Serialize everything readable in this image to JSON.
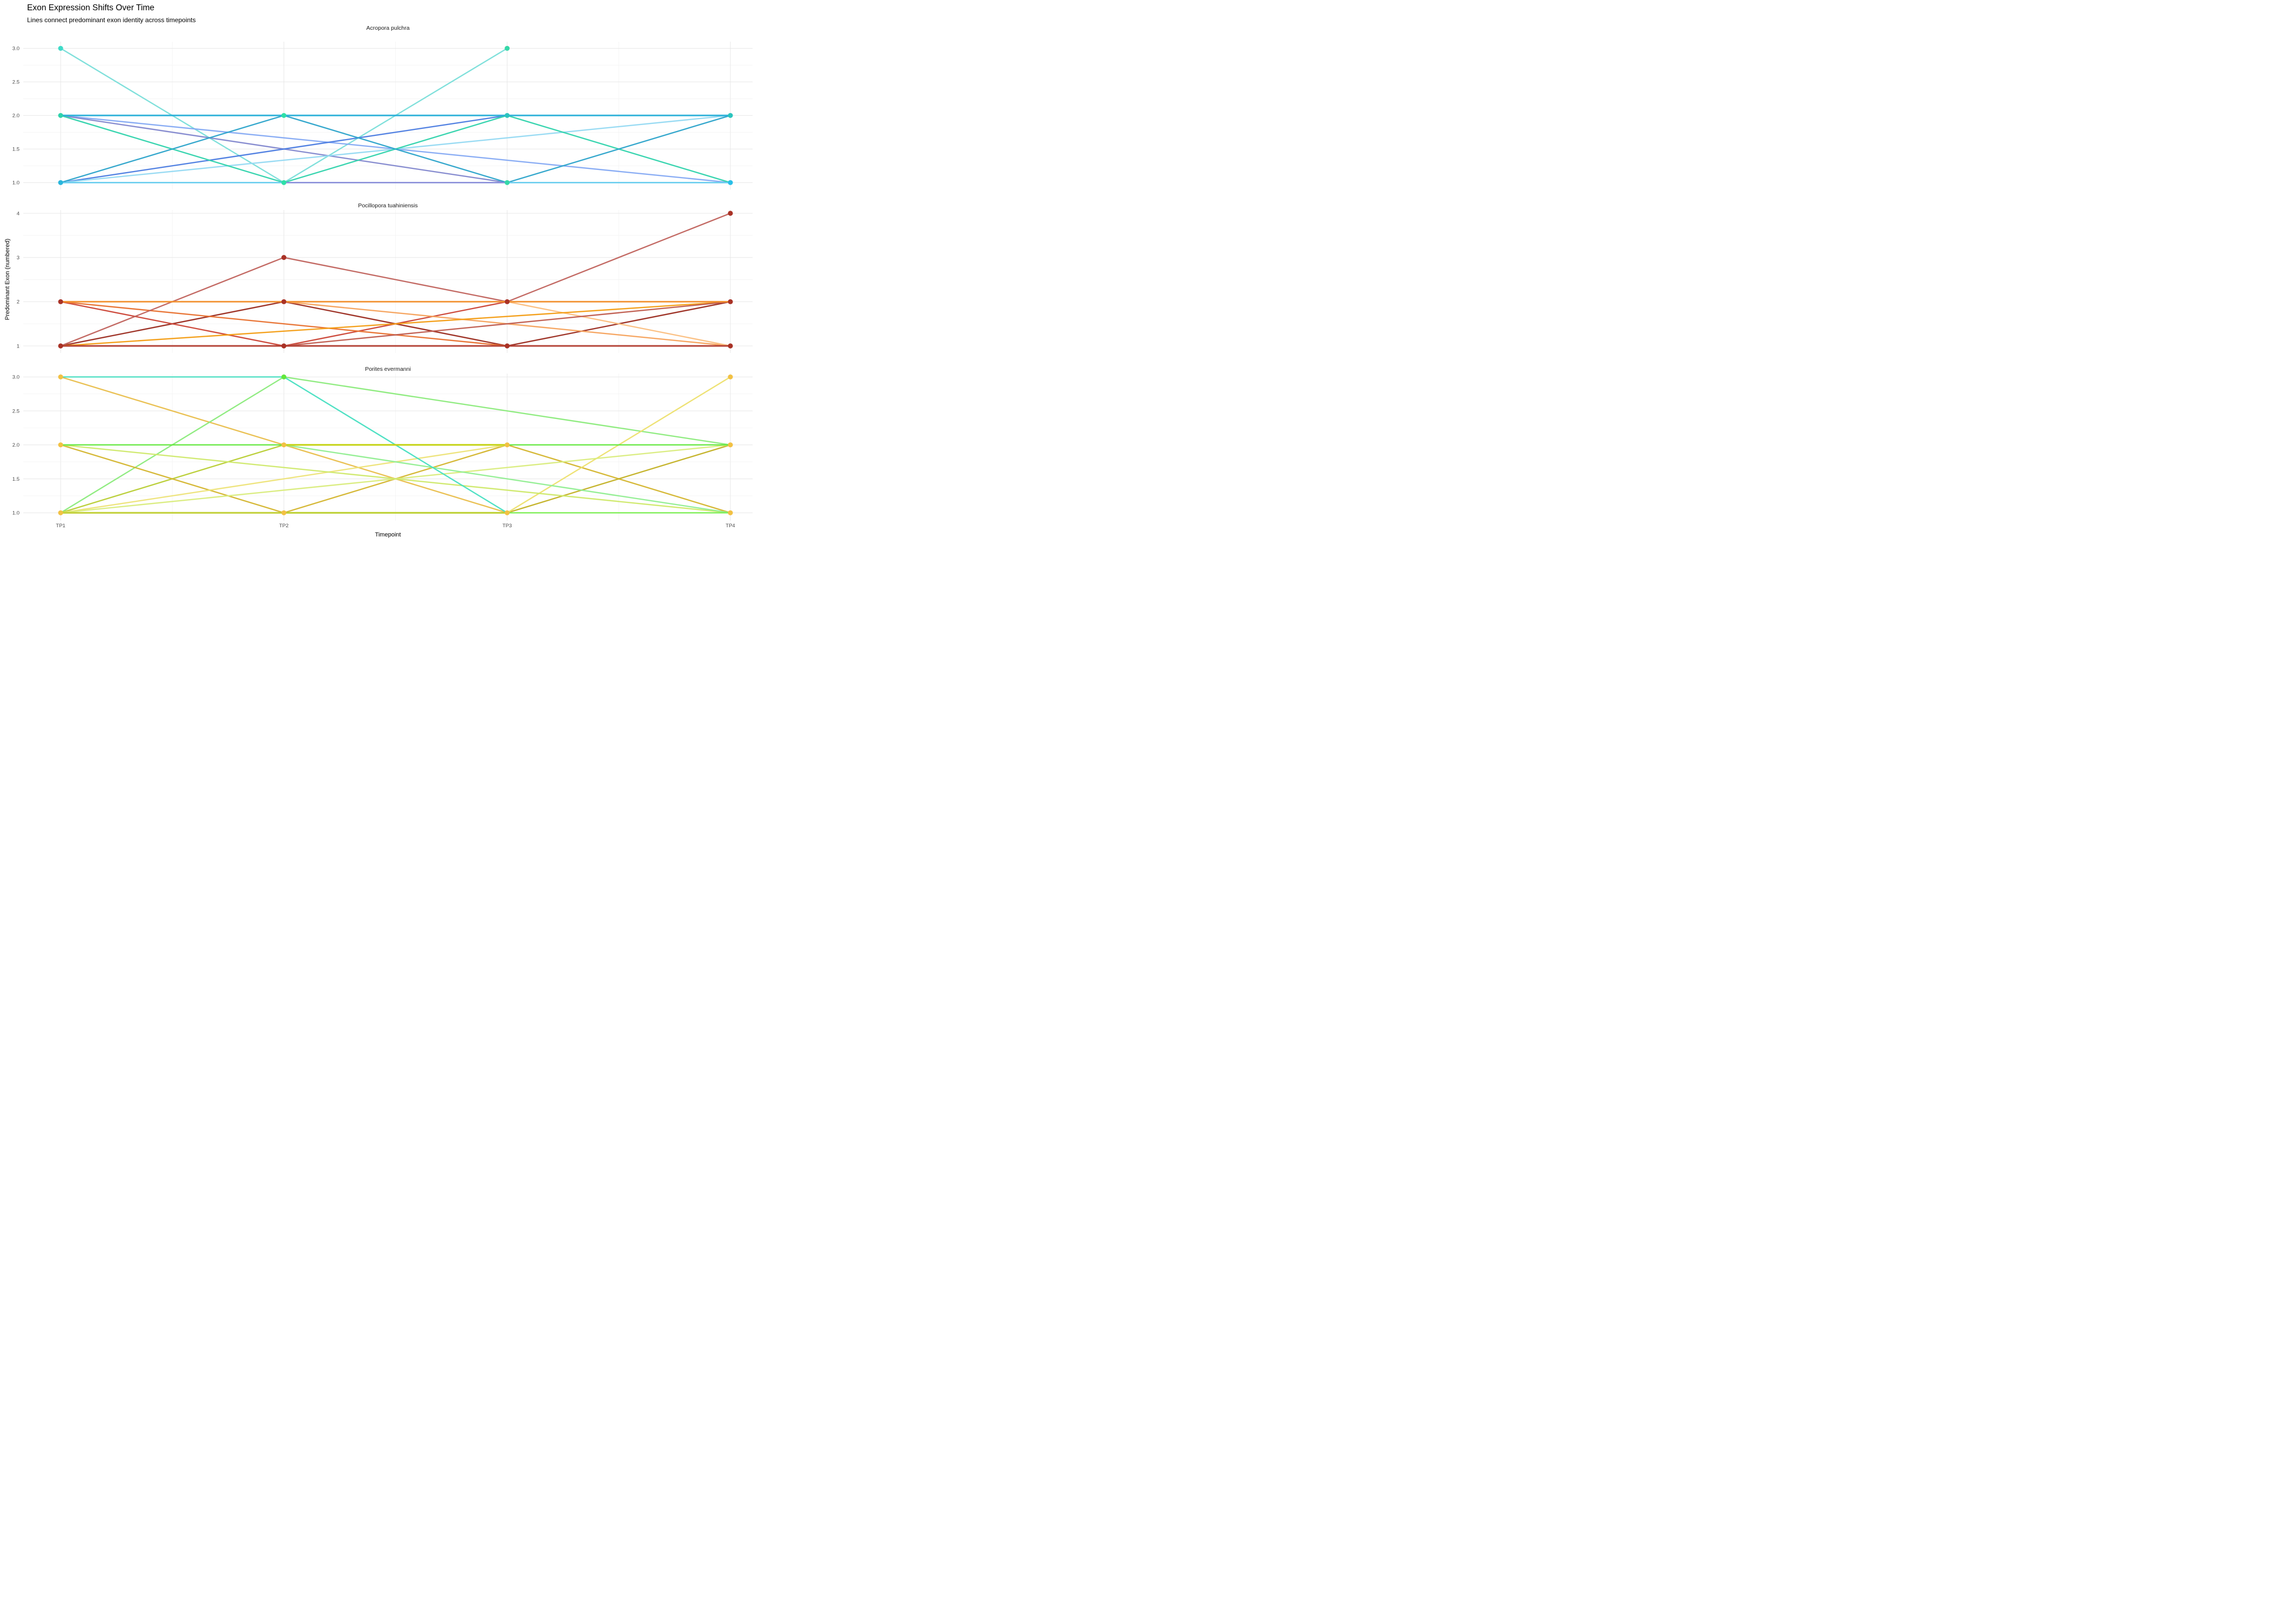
{
  "title": "Exon Expression Shifts Over Time",
  "subtitle": "Lines connect predominant exon identity across timepoints",
  "axis": {
    "x_label": "Timepoint",
    "y_label": "Predominant Exon (numbered)",
    "x_tick_labels": [
      "TP1",
      "TP2",
      "TP3",
      "TP4"
    ]
  },
  "style": {
    "grid_major_color": "#E9E9E9",
    "grid_minor_color": "#F4F4F4",
    "tick_label_color": "#4D4D4D",
    "background": "#FFFFFF"
  },
  "chart_data": [
    {
      "type": "line",
      "species": "Acropora pulchra",
      "x": [
        "TP1",
        "TP2",
        "TP3",
        "TP4"
      ],
      "ylim": [
        1,
        3
      ],
      "yticks": [
        1,
        1.5,
        2,
        2.5,
        3
      ],
      "ytick_labels": [
        "1.0",
        "1.5",
        "2.0",
        "2.5",
        "3.0"
      ],
      "minor_yticks": [
        1.25,
        1.75,
        2.25,
        2.75
      ],
      "grid": true,
      "legend": "none",
      "series": [
        {
          "id": "aqua",
          "color": "#79DED9",
          "values": [
            3,
            1,
            3,
            null
          ]
        },
        {
          "id": "cornflower",
          "color": "#84A9F3",
          "values": [
            2,
            null,
            null,
            1
          ]
        },
        {
          "id": "slate",
          "color": "#8287CE",
          "values": [
            2,
            null,
            1,
            null
          ]
        },
        {
          "id": "royal",
          "color": "#4A7BE0",
          "values": [
            1,
            null,
            2,
            null
          ]
        },
        {
          "id": "palesky",
          "color": "#93D9F2",
          "values": [
            1,
            null,
            null,
            2
          ]
        },
        {
          "id": "mint",
          "color": "#2FD3AC",
          "values": [
            2,
            1,
            2,
            1
          ]
        },
        {
          "id": "teal",
          "color": "#2BA3CA",
          "values": [
            1,
            2,
            1,
            2
          ]
        },
        {
          "id": "sky",
          "color": "#63CBEE",
          "values": [
            1,
            1,
            1,
            1
          ],
          "width": 2.7
        },
        {
          "id": "violet",
          "color": "#8F86D6",
          "values": [
            null,
            1,
            1,
            null
          ]
        },
        {
          "id": "boldcyan",
          "color": "#27AFD8",
          "values": [
            2,
            2,
            2,
            2
          ],
          "width": 3
        }
      ],
      "points": [
        {
          "tp": 1,
          "value": 3,
          "color": "#3EDBC8"
        },
        {
          "tp": 1,
          "value": 2,
          "color": "#2FD3AC"
        },
        {
          "tp": 1,
          "value": 1,
          "color": "#29B6DC"
        },
        {
          "tp": 2,
          "value": 2,
          "color": "#2EE0A8"
        },
        {
          "tp": 2,
          "value": 1,
          "color": "#2EE0A8"
        },
        {
          "tp": 3,
          "value": 3,
          "color": "#35D8A8"
        },
        {
          "tp": 3,
          "value": 2,
          "color": "#2BC4BE"
        },
        {
          "tp": 3,
          "value": 1,
          "color": "#35D8A8"
        },
        {
          "tp": 4,
          "value": 2,
          "color": "#2BC4BE"
        },
        {
          "tp": 4,
          "value": 1,
          "color": "#29BFE8"
        }
      ]
    },
    {
      "type": "line",
      "species": "Pocillopora tuahiniensis",
      "x": [
        "TP1",
        "TP2",
        "TP3",
        "TP4"
      ],
      "ylim": [
        1,
        4
      ],
      "yticks": [
        1,
        2,
        3,
        4
      ],
      "ytick_labels": [
        "1",
        "2",
        "3",
        "4"
      ],
      "minor_yticks": [
        1.5,
        2.5,
        3.5
      ],
      "grid": true,
      "legend": "none",
      "series": [
        {
          "id": "maroon",
          "color": "#9A2A1E",
          "values": [
            1,
            2,
            1,
            2
          ]
        },
        {
          "id": "red",
          "color": "#CB4335",
          "values": [
            2,
            1,
            2,
            null
          ]
        },
        {
          "id": "darkorange",
          "color": "#E8702E",
          "values": [
            2,
            null,
            1,
            null
          ]
        },
        {
          "id": "paleorange",
          "color": "#F5A15A",
          "values": [
            null,
            2,
            null,
            1
          ]
        },
        {
          "id": "peach",
          "color": "#FBBE7E",
          "values": [
            null,
            null,
            2,
            1
          ]
        },
        {
          "id": "tangerine",
          "color": "#F39C12",
          "values": [
            1,
            null,
            null,
            2
          ]
        },
        {
          "id": "brick",
          "color": "#BF5B4D",
          "values": [
            null,
            1,
            null,
            2
          ]
        },
        {
          "id": "rose",
          "color": "#C0625C",
          "values": [
            1,
            3,
            2,
            4
          ]
        },
        {
          "id": "orange",
          "color": "#F28E2B",
          "values": [
            2,
            2,
            2,
            2
          ],
          "width": 2.9
        },
        {
          "id": "brickbold",
          "color": "#B03A2E",
          "values": [
            1,
            1,
            1,
            1
          ],
          "width": 3.1
        }
      ],
      "points": [
        {
          "tp": 1,
          "value": 2,
          "color": "#A93226"
        },
        {
          "tp": 1,
          "value": 1,
          "color": "#A93226"
        },
        {
          "tp": 2,
          "value": 3,
          "color": "#A93226"
        },
        {
          "tp": 2,
          "value": 2,
          "color": "#A93226"
        },
        {
          "tp": 2,
          "value": 1,
          "color": "#A93226"
        },
        {
          "tp": 3,
          "value": 2,
          "color": "#A93226"
        },
        {
          "tp": 3,
          "value": 1,
          "color": "#A93226"
        },
        {
          "tp": 4,
          "value": 4,
          "color": "#A93226"
        },
        {
          "tp": 4,
          "value": 2,
          "color": "#A93226"
        },
        {
          "tp": 4,
          "value": 1,
          "color": "#A93226"
        }
      ]
    },
    {
      "type": "line",
      "species": "Porites evermanni",
      "x": [
        "TP1",
        "TP2",
        "TP3",
        "TP4"
      ],
      "ylim": [
        1,
        3
      ],
      "yticks": [
        1,
        1.5,
        2,
        2.5,
        3
      ],
      "ytick_labels": [
        "1.0",
        "1.5",
        "2.0",
        "2.5",
        "3.0"
      ],
      "minor_yticks": [
        1.25,
        1.75,
        2.25,
        2.75
      ],
      "grid": true,
      "legend": "none",
      "series": [
        {
          "id": "golden",
          "color": "#E9BE4B",
          "values": [
            3,
            2,
            1,
            null
          ]
        },
        {
          "id": "lightgreen",
          "color": "#8BEB7B",
          "values": [
            1,
            3,
            null,
            2
          ]
        },
        {
          "id": "ygasc",
          "color": "#B8CE33",
          "values": [
            1,
            2,
            null,
            null
          ]
        },
        {
          "id": "mustard",
          "color": "#D4B52E",
          "values": [
            2,
            1,
            2,
            1
          ]
        },
        {
          "id": "oliveasc",
          "color": "#C3B124",
          "values": [
            null,
            null,
            1,
            2
          ]
        },
        {
          "id": "paleyellow-a",
          "color": "#EDE377",
          "values": [
            1,
            null,
            2,
            null
          ]
        },
        {
          "id": "paleyellow-b",
          "color": "#EDE06E",
          "values": [
            null,
            null,
            1,
            3
          ]
        },
        {
          "id": "palelime",
          "color": "#D9EC7C",
          "values": [
            1,
            null,
            null,
            2
          ]
        },
        {
          "id": "paleyg",
          "color": "#CFE96A",
          "values": [
            2,
            null,
            null,
            1
          ]
        },
        {
          "id": "lightgreen2",
          "color": "#90EE90",
          "values": [
            null,
            2,
            null,
            1
          ]
        },
        {
          "id": "turquoise",
          "color": "#47DFC1",
          "values": [
            3,
            3,
            1,
            null
          ]
        },
        {
          "id": "greenflat1",
          "color": "#76EE4C",
          "values": [
            null,
            1,
            1,
            1
          ]
        },
        {
          "id": "oliveflat1",
          "color": "#BFCE2F",
          "values": [
            1,
            1,
            1,
            null
          ],
          "width": 3.1
        },
        {
          "id": "greenflat2",
          "color": "#62E83C",
          "values": [
            2,
            2,
            2,
            2
          ]
        },
        {
          "id": "oliveflat2",
          "color": "#C9D214",
          "values": [
            null,
            2,
            2,
            null
          ],
          "width": 3.1
        }
      ],
      "points": [
        {
          "tp": 1,
          "value": 3,
          "color": "#F2C144"
        },
        {
          "tp": 1,
          "value": 2,
          "color": "#F2C144"
        },
        {
          "tp": 1,
          "value": 1,
          "color": "#F2C144"
        },
        {
          "tp": 2,
          "value": 3,
          "color": "#62E83C"
        },
        {
          "tp": 2,
          "value": 2,
          "color": "#F2C144"
        },
        {
          "tp": 2,
          "value": 1,
          "color": "#F2C144"
        },
        {
          "tp": 3,
          "value": 2,
          "color": "#F2C144"
        },
        {
          "tp": 3,
          "value": 1,
          "color": "#F2C144"
        },
        {
          "tp": 4,
          "value": 3,
          "color": "#F2C144"
        },
        {
          "tp": 4,
          "value": 2,
          "color": "#F2C144"
        },
        {
          "tp": 4,
          "value": 1,
          "color": "#F2C144"
        }
      ]
    }
  ]
}
